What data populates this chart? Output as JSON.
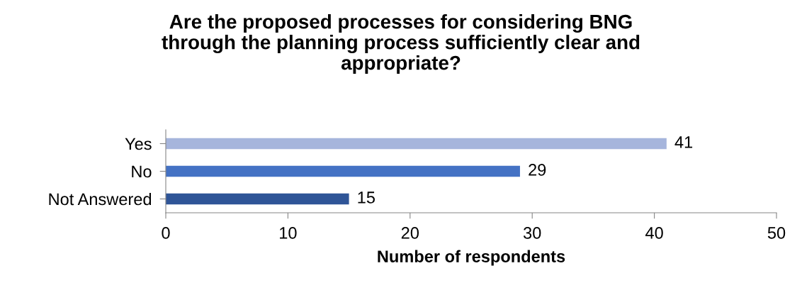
{
  "chart_data": {
    "type": "bar",
    "orientation": "horizontal",
    "title": "Are the proposed processes for considering BNG\nthrough the planning process sufficiently clear and\nappropriate?",
    "xlabel": "Number of respondents",
    "categories": [
      "Yes",
      "No",
      "Not Answered"
    ],
    "values": [
      41,
      29,
      15
    ],
    "colors": [
      "#a6b5dc",
      "#4472c4",
      "#2f5597"
    ],
    "xlim": [
      0,
      50
    ],
    "xticks": [
      0,
      10,
      20,
      30,
      40,
      50
    ],
    "data_labels": true,
    "grid": false,
    "legend": false
  }
}
